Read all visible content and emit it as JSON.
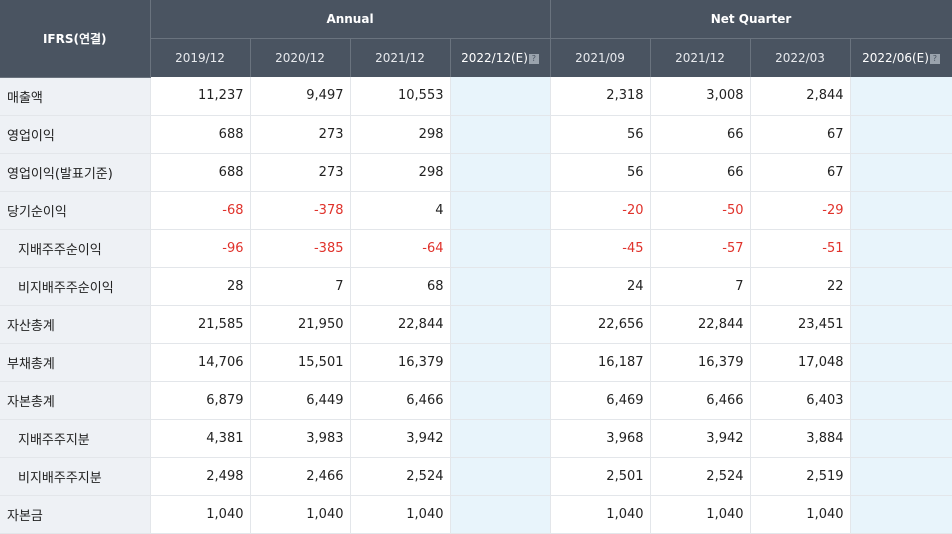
{
  "header": {
    "ifrs_label": "IFRS(연결)",
    "annual_label": "Annual",
    "quarter_label": "Net Quarter",
    "help_glyph": "?",
    "annual_periods": [
      "2019/12",
      "2020/12",
      "2021/12",
      "2022/12(E)"
    ],
    "quarter_periods": [
      "2021/09",
      "2021/12",
      "2022/03",
      "2022/06(E)"
    ]
  },
  "rows": [
    {
      "label": "매출액",
      "annual": [
        "11,237",
        "9,497",
        "10,553",
        ""
      ],
      "quarter": [
        "2,318",
        "3,008",
        "2,844",
        ""
      ]
    },
    {
      "label": "영업이익",
      "annual": [
        "688",
        "273",
        "298",
        ""
      ],
      "quarter": [
        "56",
        "66",
        "67",
        ""
      ]
    },
    {
      "label": "영업이익(발표기준)",
      "annual": [
        "688",
        "273",
        "298",
        ""
      ],
      "quarter": [
        "56",
        "66",
        "67",
        ""
      ]
    },
    {
      "label": "당기순이익",
      "annual": [
        "-68",
        "-378",
        "4",
        ""
      ],
      "quarter": [
        "-20",
        "-50",
        "-29",
        ""
      ]
    },
    {
      "label": "지배주주순이익",
      "annual": [
        "-96",
        "-385",
        "-64",
        ""
      ],
      "quarter": [
        "-45",
        "-57",
        "-51",
        ""
      ]
    },
    {
      "label": "비지배주주순이익",
      "annual": [
        "28",
        "7",
        "68",
        ""
      ],
      "quarter": [
        "24",
        "7",
        "22",
        ""
      ]
    },
    {
      "label": "자산총계",
      "annual": [
        "21,585",
        "21,950",
        "22,844",
        ""
      ],
      "quarter": [
        "22,656",
        "22,844",
        "23,451",
        ""
      ]
    },
    {
      "label": "부채총계",
      "annual": [
        "14,706",
        "15,501",
        "16,379",
        ""
      ],
      "quarter": [
        "16,187",
        "16,379",
        "17,048",
        ""
      ]
    },
    {
      "label": "자본총계",
      "annual": [
        "6,879",
        "6,449",
        "6,466",
        ""
      ],
      "quarter": [
        "6,469",
        "6,466",
        "6,403",
        ""
      ]
    },
    {
      "label": "지배주주지분",
      "annual": [
        "4,381",
        "3,983",
        "3,942",
        ""
      ],
      "quarter": [
        "3,968",
        "3,942",
        "3,884",
        ""
      ]
    },
    {
      "label": "비지배주주지분",
      "annual": [
        "2,498",
        "2,466",
        "2,524",
        ""
      ],
      "quarter": [
        "2,501",
        "2,524",
        "2,519",
        ""
      ]
    },
    {
      "label": "자본금",
      "annual": [
        "1,040",
        "1,040",
        "1,040",
        ""
      ],
      "quarter": [
        "1,040",
        "1,040",
        "1,040",
        ""
      ]
    }
  ],
  "colors": {
    "header_bg": "#4a5461",
    "label_bg": "#eef1f5",
    "estimate_bg": "#e8f4fb",
    "negative": "#e0322b"
  }
}
